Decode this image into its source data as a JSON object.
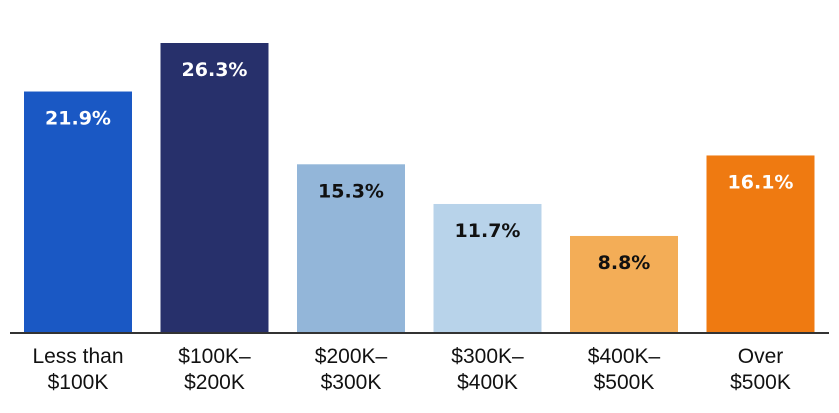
{
  "chart_data": {
    "type": "bar",
    "categories": [
      [
        "Less than",
        "$100K"
      ],
      [
        "$100K–",
        "$200K"
      ],
      [
        "$200K–",
        "$300K"
      ],
      [
        "$300K–",
        "$400K"
      ],
      [
        "$400K–",
        "$500K"
      ],
      [
        "Over",
        "$500K"
      ]
    ],
    "values": [
      21.9,
      26.3,
      15.3,
      11.7,
      8.8,
      16.1
    ],
    "value_labels": [
      "21.9%",
      "26.3%",
      "15.3%",
      "11.7%",
      "8.8%",
      "16.1%"
    ],
    "colors": [
      "#1a58c4",
      "#27306b",
      "#93b6d9",
      "#b8d3ea",
      "#f3ad57",
      "#ef7a11"
    ],
    "label_colors": [
      "#ffffff",
      "#ffffff",
      "#111111",
      "#111111",
      "#111111",
      "#ffffff"
    ],
    "axis_color": "#333333",
    "ylim": [
      0,
      26.3
    ],
    "grid": false,
    "legend": "none",
    "title": "",
    "xlabel": "",
    "ylabel": ""
  }
}
